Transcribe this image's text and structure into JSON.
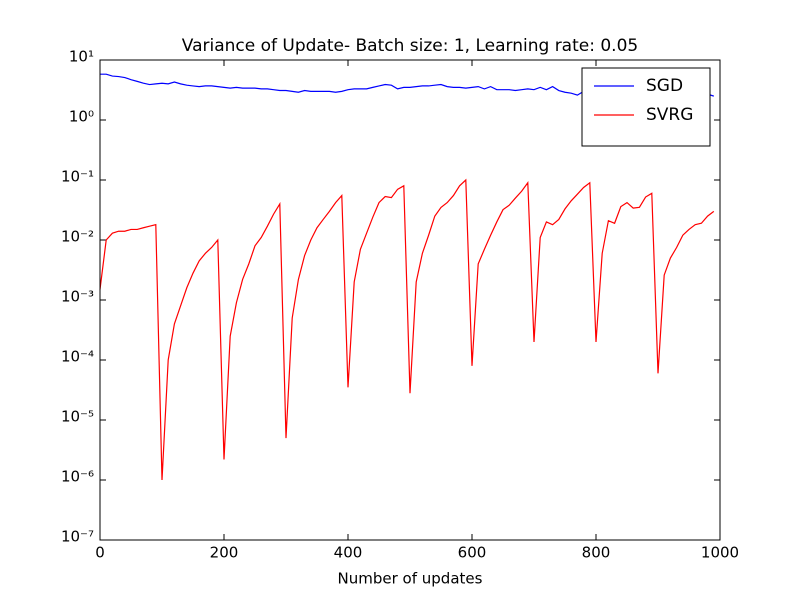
{
  "chart_data": {
    "type": "line",
    "title": "Variance of Update- Batch size: 1, Learning rate: 0.05",
    "xlabel": "Number of updates",
    "x": [
      0,
      10,
      20,
      30,
      40,
      50,
      60,
      70,
      80,
      90,
      100,
      110,
      120,
      130,
      140,
      150,
      160,
      170,
      180,
      190,
      200,
      210,
      220,
      230,
      240,
      250,
      260,
      270,
      280,
      290,
      300,
      310,
      320,
      330,
      340,
      350,
      360,
      370,
      380,
      390,
      400,
      410,
      420,
      430,
      440,
      450,
      460,
      470,
      480,
      490,
      500,
      510,
      520,
      530,
      540,
      550,
      560,
      570,
      580,
      590,
      600,
      610,
      620,
      630,
      640,
      650,
      660,
      670,
      680,
      690,
      700,
      710,
      720,
      730,
      740,
      750,
      760,
      770,
      780,
      790,
      800,
      810,
      820,
      830,
      840,
      850,
      860,
      870,
      880,
      890,
      900,
      910,
      920,
      930,
      940,
      950,
      960,
      970,
      980,
      990
    ],
    "series": [
      {
        "name": "SGD",
        "color": "#0000ff",
        "values": [
          5.8,
          5.8,
          5.4,
          5.3,
          5.1,
          4.7,
          4.4,
          4.1,
          3.9,
          4.0,
          4.1,
          4.0,
          4.3,
          4.0,
          3.8,
          3.7,
          3.6,
          3.7,
          3.7,
          3.6,
          3.5,
          3.4,
          3.5,
          3.4,
          3.4,
          3.4,
          3.3,
          3.3,
          3.2,
          3.1,
          3.1,
          3.0,
          2.9,
          3.1,
          3.0,
          3.0,
          3.0,
          3.0,
          2.9,
          3.0,
          3.2,
          3.3,
          3.3,
          3.3,
          3.5,
          3.7,
          3.9,
          3.8,
          3.3,
          3.5,
          3.5,
          3.6,
          3.7,
          3.7,
          3.8,
          3.9,
          3.6,
          3.5,
          3.5,
          3.4,
          3.5,
          3.6,
          3.3,
          3.6,
          3.2,
          3.2,
          3.2,
          3.1,
          3.2,
          3.3,
          3.2,
          3.5,
          3.2,
          3.6,
          3.1,
          2.9,
          2.8,
          2.6,
          3.0,
          2.8,
          2.9,
          2.8,
          2.8,
          2.9,
          2.8,
          2.8,
          2.9,
          2.8,
          2.8,
          2.7,
          2.8,
          2.7,
          2.7,
          2.6,
          2.6,
          2.7,
          2.6,
          2.6,
          2.7,
          2.5
        ]
      },
      {
        "name": "SVRG",
        "color": "#ff0000",
        "values": [
          0.0015,
          0.01,
          0.013,
          0.014,
          0.014,
          0.015,
          0.015,
          0.016,
          0.017,
          0.018,
          1e-06,
          0.0001,
          0.0004,
          0.0008,
          0.0016,
          0.0028,
          0.0045,
          0.006,
          0.0075,
          0.01,
          2.2e-06,
          0.00025,
          0.0009,
          0.0022,
          0.004,
          0.008,
          0.011,
          0.017,
          0.027,
          0.04,
          5e-06,
          0.0005,
          0.0022,
          0.0055,
          0.01,
          0.016,
          0.022,
          0.03,
          0.042,
          0.055,
          3.5e-05,
          0.002,
          0.007,
          0.013,
          0.024,
          0.042,
          0.053,
          0.051,
          0.07,
          0.08,
          2.8e-05,
          0.002,
          0.006,
          0.012,
          0.025,
          0.035,
          0.042,
          0.055,
          0.08,
          0.1,
          8e-05,
          0.004,
          0.007,
          0.012,
          0.02,
          0.032,
          0.038,
          0.05,
          0.065,
          0.09,
          0.0002,
          0.011,
          0.02,
          0.018,
          0.022,
          0.033,
          0.045,
          0.058,
          0.075,
          0.09,
          0.0002,
          0.006,
          0.021,
          0.019,
          0.036,
          0.042,
          0.034,
          0.035,
          0.052,
          0.06,
          6e-05,
          0.0026,
          0.005,
          0.0075,
          0.012,
          0.015,
          0.018,
          0.019,
          0.025,
          0.03
        ]
      }
    ],
    "xlim": [
      0,
      1000
    ],
    "xticks": [
      0,
      200,
      400,
      600,
      800,
      1000
    ],
    "ylim": [
      1e-07,
      10
    ],
    "yscale": "log",
    "yticks": [
      {
        "value": 1e-07,
        "label": "10⁻⁷"
      },
      {
        "value": 1e-06,
        "label": "10⁻⁶"
      },
      {
        "value": 1e-05,
        "label": "10⁻⁵"
      },
      {
        "value": 0.0001,
        "label": "10⁻⁴"
      },
      {
        "value": 0.001,
        "label": "10⁻³"
      },
      {
        "value": 0.01,
        "label": "10⁻²"
      },
      {
        "value": 0.1,
        "label": "10⁻¹"
      },
      {
        "value": 1,
        "label": "10⁰"
      },
      {
        "value": 10,
        "label": "10¹"
      }
    ],
    "legend": "upper right",
    "grid": false
  }
}
